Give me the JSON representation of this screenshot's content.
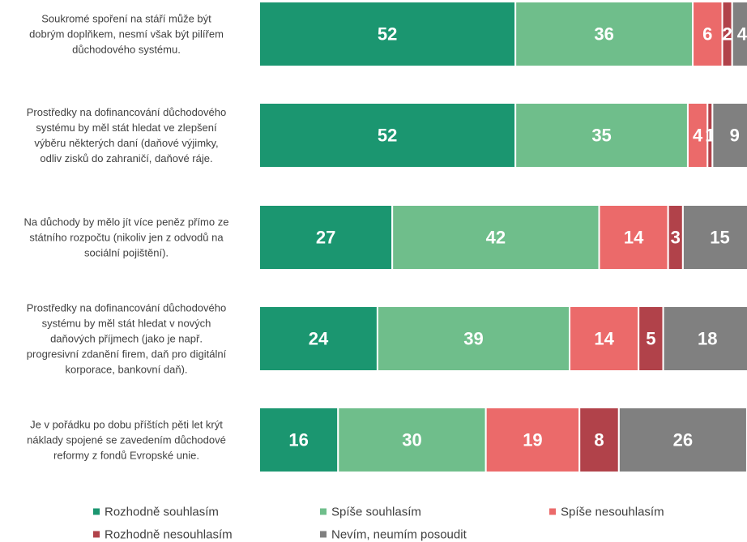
{
  "chart_data": {
    "type": "stacked-bar-horizontal",
    "categories": [
      "Soukromé spoření na stáří může být\ndobrým doplňkem, nesmí však být pilířem\ndůchodového systému.",
      "Prostředky na dofinancování důchodového\nsystému by měl stát hledat ve zlepšení\nvýběru některých daní (daňové výjimky,\nodliv zisků do zahraničí, daňové ráje.",
      "Na důchody by mělo jít více peněz přímo ze\nstátního rozpočtu (nikoliv jen z odvodů na\nsociální pojištění).",
      "Prostředky na dofinancování důchodového\nsystému by měl stát hledat v nových\ndaňových příjmech (jako je např.\nprogresivní zdanění firem, daň pro digitální\nkorporace, bankovní daň).",
      "Je v pořádku po dobu příštích pěti let krýt\nnáklady spojené se zavedením důchodové\nreformy z fondů Evropské unie."
    ],
    "series": [
      {
        "name": "Rozhodně souhlasím",
        "color": "#1b9670",
        "values": [
          52,
          52,
          27,
          24,
          16
        ]
      },
      {
        "name": "Spíše souhlasím",
        "color": "#6fbe8b",
        "values": [
          36,
          35,
          42,
          39,
          30
        ]
      },
      {
        "name": "Spíše nesouhlasím",
        "color": "#eb6a6a",
        "values": [
          6,
          4,
          14,
          14,
          19
        ]
      },
      {
        "name": "Rozhodně nesouhlasím",
        "color": "#b1424a",
        "values": [
          2,
          1,
          3,
          5,
          8
        ]
      },
      {
        "name": "Nevím, neumím posoudit",
        "color": "#808080",
        "values": [
          4,
          9,
          15,
          18,
          26
        ]
      }
    ],
    "xlim": [
      0,
      100
    ],
    "legend": "bottom"
  }
}
